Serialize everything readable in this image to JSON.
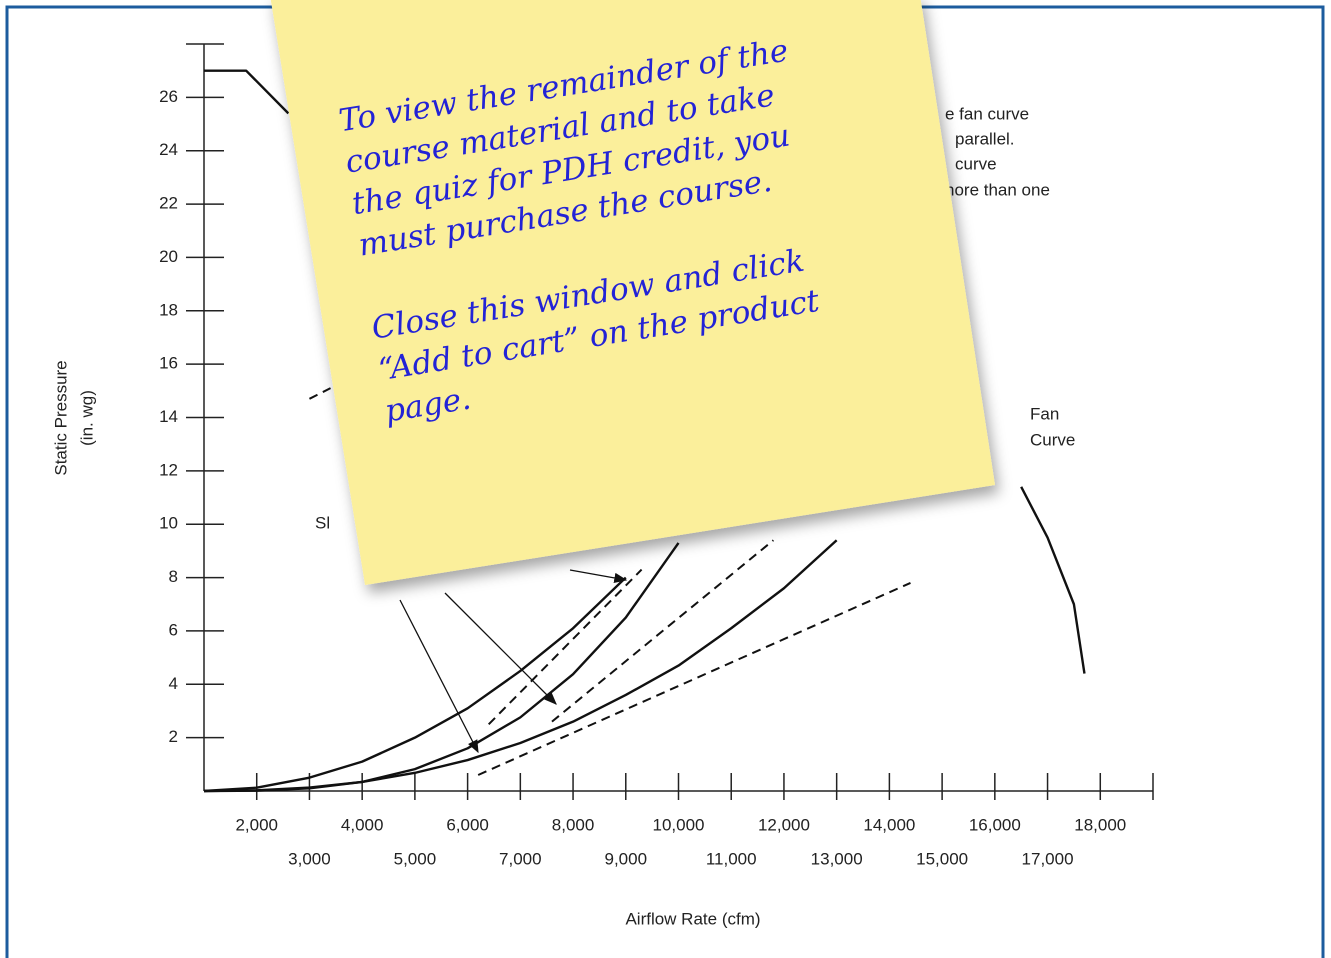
{
  "chart_data": {
    "type": "line",
    "x_label": "Airflow Rate (cfm)",
    "y_label": [
      "Static Pressure",
      "(in. wg)"
    ],
    "xlim": [
      1000,
      19000
    ],
    "ylim": [
      0,
      28
    ],
    "xticks": [
      {
        "value": 2000,
        "label": "2,000"
      },
      {
        "value": 3000,
        "label": "3,000"
      },
      {
        "value": 4000,
        "label": "4,000"
      },
      {
        "value": 5000,
        "label": "5,000"
      },
      {
        "value": 6000,
        "label": "6,000"
      },
      {
        "value": 7000,
        "label": "7,000"
      },
      {
        "value": 8000,
        "label": "8,000"
      },
      {
        "value": 9000,
        "label": "9,000"
      },
      {
        "value": 10000,
        "label": "10,000"
      },
      {
        "value": 11000,
        "label": "11,000"
      },
      {
        "value": 12000,
        "label": "12,000"
      },
      {
        "value": 13000,
        "label": "13,000"
      },
      {
        "value": 14000,
        "label": "14,000"
      },
      {
        "value": 15000,
        "label": "15,000"
      },
      {
        "value": 16000,
        "label": "16,000"
      },
      {
        "value": 17000,
        "label": "17,000"
      },
      {
        "value": 18000,
        "label": "18,000"
      }
    ],
    "yticks": [
      2,
      4,
      6,
      8,
      10,
      12,
      14,
      16,
      18,
      20,
      22,
      24,
      26
    ],
    "series": [
      {
        "color": "#111111",
        "x": [
          1000,
          2000,
          3000,
          4000,
          5000,
          6000,
          7000,
          8000,
          9000
        ],
        "values": [
          0,
          0.125,
          0.5,
          1.1,
          2,
          3.1,
          4.5,
          6.1,
          8
        ]
      },
      {
        "color": "#111111",
        "x": [
          1000,
          2000,
          3000,
          4000,
          5000,
          6000,
          7000,
          8000,
          9000,
          10000
        ],
        "values": [
          0,
          0.013,
          0.1,
          0.34,
          0.82,
          1.6,
          2.76,
          4.38,
          6.5,
          9.3
        ]
      },
      {
        "color": "#111111",
        "x": [
          1000,
          2000,
          3000,
          4000,
          5000,
          6000,
          7000,
          8000,
          9000,
          10000,
          11000,
          12000,
          13000
        ],
        "values": [
          0,
          0.025,
          0.13,
          0.34,
          0.68,
          1.16,
          1.8,
          2.6,
          3.6,
          4.7,
          6.1,
          7.6,
          9.4
        ]
      },
      {
        "color": "#111111",
        "x": [
          1000,
          1800,
          2600,
          15900,
          16500,
          17000,
          17500,
          17700
        ],
        "values": [
          27,
          27,
          25.4,
          null,
          11.4,
          9.5,
          7,
          4.4
        ]
      },
      {
        "color": "#111111",
        "dashed": true,
        "x": [
          6400,
          9300
        ],
        "values": [
          2.5,
          8.3
        ]
      },
      {
        "color": "#111111",
        "dashed": true,
        "x": [
          7600,
          11800
        ],
        "values": [
          2.6,
          9.4
        ]
      },
      {
        "color": "#111111",
        "dashed": true,
        "x": [
          6200,
          14400
        ],
        "values": [
          0.6,
          7.8
        ]
      },
      {
        "color": "#111111",
        "dashed": true,
        "x": [
          3000,
          3400
        ],
        "values": [
          14.7,
          15.1
        ]
      }
    ],
    "annotations": [
      "Fan",
      "Curve",
      "e fan curve",
      "parallel.",
      "curve",
      "nore than one",
      "Sl"
    ]
  },
  "sticky_note": {
    "lines": [
      "To view the remainder of the",
      "course material and to take",
      "the quiz for PDH credit, you",
      "must purchase the course.",
      "Close this window and click",
      "“Add to cart” on the product",
      "page."
    ]
  }
}
